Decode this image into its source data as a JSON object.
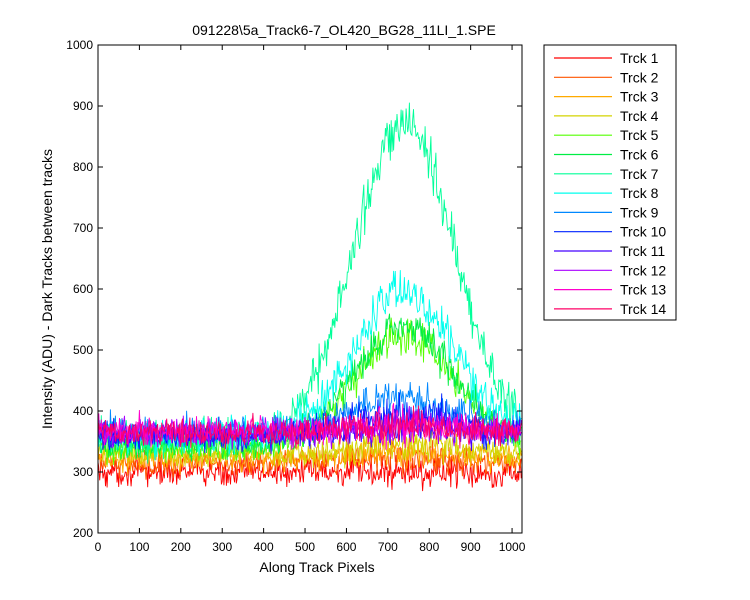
{
  "chart_data": {
    "type": "line",
    "title": "091228\\5a_Track6-7_OL420_BG28_11LI_1.SPE",
    "xlabel": "Along Track Pixels",
    "ylabel": "Intensity (ADU) - Dark Tracks between tracks",
    "xlim": [
      0,
      1024
    ],
    "ylim": [
      200,
      1000
    ],
    "xticks": [
      0,
      100,
      200,
      300,
      400,
      500,
      600,
      700,
      800,
      900,
      1000
    ],
    "yticks": [
      200,
      300,
      400,
      500,
      600,
      700,
      800,
      900,
      1000
    ],
    "grid": false,
    "legend_position": "outside-right",
    "note_on_series": "Each series is noisy; values below are approximate baseline, peak amplitude (at x≈740) and noise.",
    "series": [
      {
        "name": "Trck 1",
        "color": "#ff0000",
        "baseline": 300,
        "peak": 0,
        "noise": 12
      },
      {
        "name": "Trck 2",
        "color": "#ff5500",
        "baseline": 315,
        "peak": 10,
        "noise": 10
      },
      {
        "name": "Trck 3",
        "color": "#ffaa00",
        "baseline": 322,
        "peak": 10,
        "noise": 10
      },
      {
        "name": "Trck 4",
        "color": "#d4d400",
        "baseline": 330,
        "peak": 15,
        "noise": 10
      },
      {
        "name": "Trck 5",
        "color": "#55ff00",
        "baseline": 340,
        "peak": 185,
        "noise": 12
      },
      {
        "name": "Trck 6",
        "color": "#00ee44",
        "baseline": 345,
        "peak": 190,
        "noise": 12
      },
      {
        "name": "Trck 7",
        "color": "#00ff99",
        "baseline": 355,
        "peak": 520,
        "noise": 16
      },
      {
        "name": "Trck 8",
        "color": "#00ffee",
        "baseline": 360,
        "peak": 235,
        "noise": 14
      },
      {
        "name": "Trck 9",
        "color": "#0088ff",
        "baseline": 365,
        "peak": 55,
        "noise": 12
      },
      {
        "name": "Trck 10",
        "color": "#0022ff",
        "baseline": 360,
        "peak": 35,
        "noise": 12
      },
      {
        "name": "Trck 11",
        "color": "#4400ff",
        "baseline": 362,
        "peak": 15,
        "noise": 11
      },
      {
        "name": "Trck 12",
        "color": "#aa00ff",
        "baseline": 365,
        "peak": 10,
        "noise": 11
      },
      {
        "name": "Trck 13",
        "color": "#ff00cc",
        "baseline": 367,
        "peak": 10,
        "noise": 11
      },
      {
        "name": "Trck 14",
        "color": "#ff0066",
        "baseline": 365,
        "peak": 10,
        "noise": 11
      }
    ]
  }
}
